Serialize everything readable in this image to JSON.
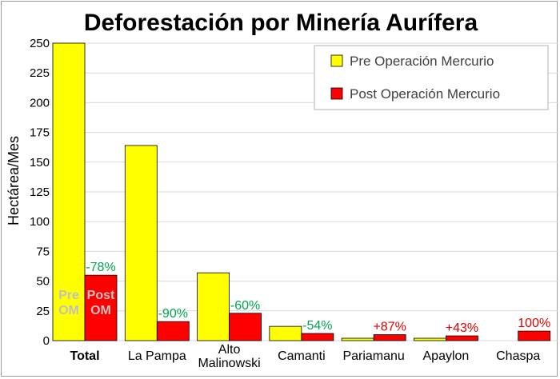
{
  "chart_data": {
    "type": "bar",
    "title": "Deforestación por Minería Aurífera",
    "ylabel": "Hectárea/Mes",
    "xlabel": "",
    "ylim": [
      0,
      250
    ],
    "yticks": [
      0,
      25,
      50,
      75,
      100,
      125,
      150,
      175,
      200,
      225,
      250
    ],
    "grid": true,
    "legend_position": "top-right",
    "categories": [
      "Total",
      "La Pampa",
      "Alto\nMalinowski",
      "Camanti",
      "Pariamanu",
      "Apaylon",
      "Chaspa"
    ],
    "series": [
      {
        "name": "Pre Operación Mercurio",
        "color": "#ffff00",
        "values": [
          250,
          164,
          57,
          12,
          2,
          2,
          0
        ]
      },
      {
        "name": "Post Operación Mercurio",
        "color": "#ff0000",
        "values": [
          55,
          16,
          23,
          6,
          5,
          4,
          8
        ]
      }
    ],
    "annotations": [
      "-78%",
      "-90%",
      "-60%",
      "-54%",
      "+87%",
      "+43%",
      "100%"
    ],
    "annotation_colors": [
      "#00a651",
      "#00a651",
      "#00a651",
      "#00a651",
      "#e00000",
      "#e00000",
      "#e00000"
    ],
    "bar_labels": {
      "pre": "Pre\nOM",
      "post": "Post\nOM"
    }
  }
}
